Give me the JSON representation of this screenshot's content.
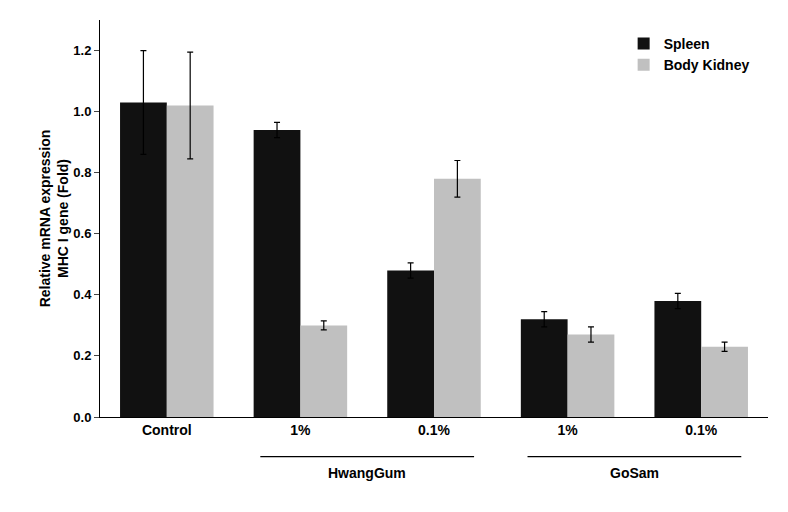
{
  "chart_data": {
    "type": "bar",
    "categories": [
      "Control",
      "1%",
      "0.1%",
      "1%",
      "0.1%"
    ],
    "series": [
      {
        "name": "Spleen",
        "color": "#111111",
        "values": [
          1.03,
          0.94,
          0.48,
          0.32,
          0.38
        ],
        "errors": [
          0.17,
          0.025,
          0.025,
          0.025,
          0.025
        ]
      },
      {
        "name": "Body Kidney",
        "color": "#c0c0c0",
        "values": [
          1.02,
          0.3,
          0.78,
          0.27,
          0.23
        ],
        "errors": [
          0.175,
          0.015,
          0.06,
          0.025,
          0.015
        ]
      }
    ],
    "ylabel": "Relative mRNA expression\nMHC I gene (Fold)",
    "ylim": [
      0,
      1.3
    ],
    "yticks": [
      {
        "value": 0.0,
        "label": "0.0"
      },
      0.2,
      0.4,
      0.6,
      0.8,
      {
        "value": 1.0,
        "label": "1.0"
      },
      1.2
    ],
    "annotations": [
      {
        "text": "HwangGum",
        "x": [
          1,
          2
        ]
      },
      {
        "text": "GoSam",
        "x": [
          3,
          4
        ]
      }
    ],
    "grid": false,
    "legend": "upper right"
  }
}
